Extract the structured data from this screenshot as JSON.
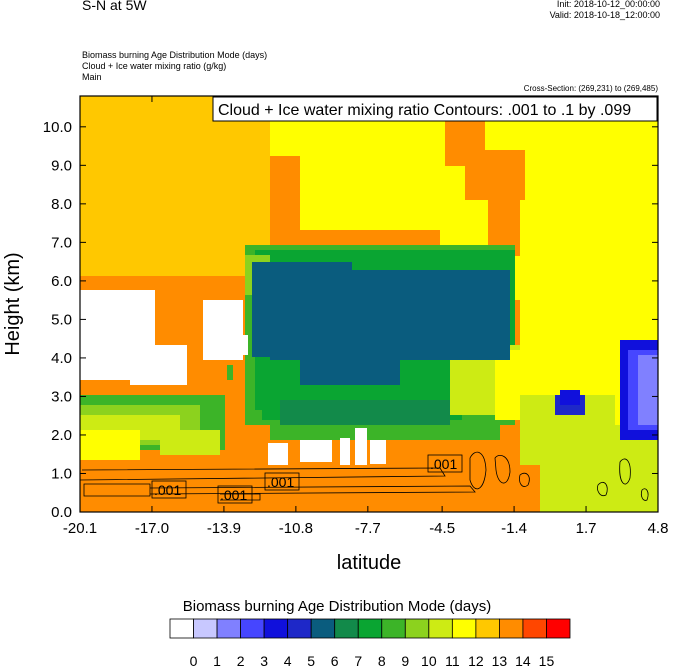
{
  "header": {
    "title": "S-N at 5W",
    "init": "Init: 2018-10-12_00:00:00",
    "valid": "Valid: 2018-10-18_12:00:00",
    "field1": "Biomass burning Age Distribution Mode   (days)",
    "field2": "Cloud + Ice water mixing ratio   (g/kg)",
    "field3": "Main",
    "cross_section": "Cross-Section: (269,231) to (269,485)"
  },
  "chart_data": {
    "type": "heatmap",
    "title": "S-N at 5W",
    "contour_title": "Cloud + Ice water mixing ratio Contours: .001 to .1 by .099",
    "xlabel": "latitude",
    "ylabel": "Height (km)",
    "xlim": [
      -20.1,
      4.8
    ],
    "ylim": [
      0.0,
      10.8
    ],
    "xticks": [
      "-20.1",
      "-17.0",
      "-13.9",
      "-10.8",
      "-7.7",
      "-4.5",
      "-1.4",
      "1.7",
      "4.8"
    ],
    "yticks": [
      "0.0",
      "1.0",
      "2.0",
      "3.0",
      "4.0",
      "5.0",
      "6.0",
      "7.0",
      "8.0",
      "9.0",
      "10.0"
    ],
    "contour_labels": [
      ".001",
      ".001",
      ".001",
      ".001"
    ],
    "colorbar": {
      "title": "Biomass burning Age Distribution Mode  (days)",
      "labels": [
        "0",
        "1",
        "2",
        "3",
        "4",
        "5",
        "6",
        "7",
        "8",
        "9",
        "10",
        "11",
        "12",
        "13",
        "14",
        "15"
      ],
      "colors": [
        "#ffffff",
        "#c8c8ff",
        "#8080ff",
        "#4646ff",
        "#1010dc",
        "#1e28c8",
        "#0a5c7e",
        "#128a4a",
        "#0aa532",
        "#3cb428",
        "#8cd21e",
        "#cdeb14",
        "#ffff00",
        "#ffc800",
        "#ff8c00",
        "#ff4600",
        "#ff0000"
      ]
    }
  }
}
